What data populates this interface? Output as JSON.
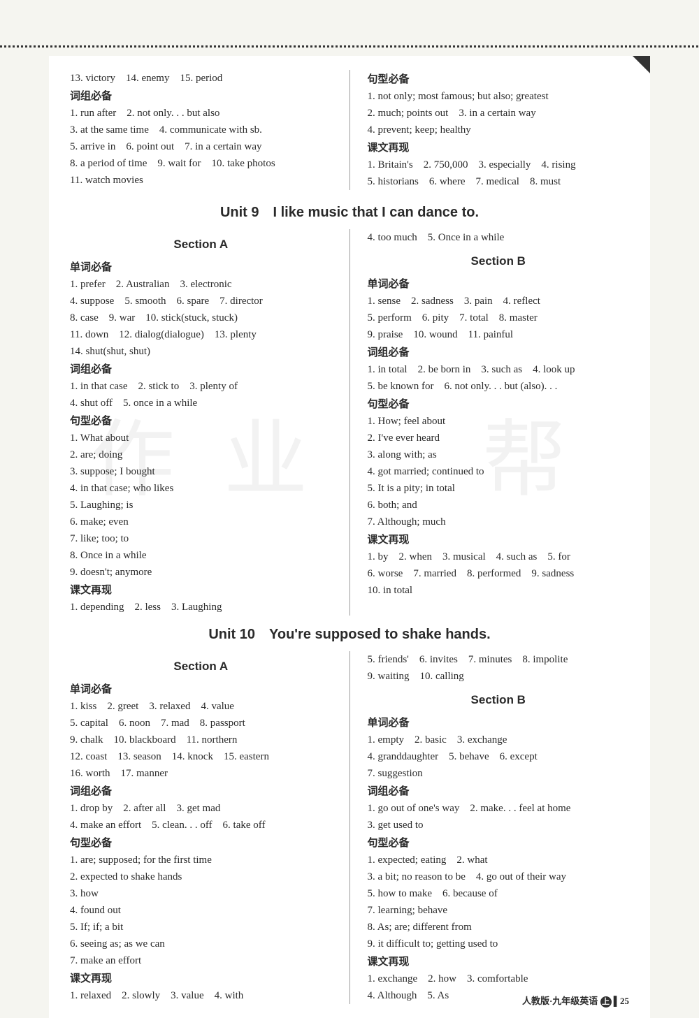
{
  "top": {
    "left": {
      "line1": "13. victory　14. enemy　15. period",
      "heading1": "词组必备",
      "line2": "1. run after　2. not only. . . but also",
      "line3": "3. at the same time　4. communicate with sb.",
      "line4": "5. arrive in　6. point out　7. in a certain way",
      "line5": "8. a period of time　9. wait for　10. take photos",
      "line6": "11. watch movies"
    },
    "right": {
      "heading1": "句型必备",
      "line1": "1. not only; most famous; but also; greatest",
      "line2": "2. much; points out　3. in a certain way",
      "line3": "4. prevent; keep; healthy",
      "heading2": "课文再现",
      "line4": "1. Britain's　2. 750,000　3. especially　4. rising",
      "line5": "5. historians　6. where　7. medical　8. must"
    }
  },
  "unit9": {
    "title": "Unit 9　I like music that I can dance to.",
    "sectionA": {
      "title": "Section A",
      "h1": "单词必备",
      "l1": "1. prefer　2. Australian　3. electronic",
      "l2": "4. suppose　5. smooth　6. spare　7. director",
      "l3": "8. case　9. war　10. stick(stuck, stuck)",
      "l4": "11. down　12. dialog(dialogue)　13. plenty",
      "l5": "14. shut(shut, shut)",
      "h2": "词组必备",
      "l6": "1. in that case　2. stick to　3. plenty of",
      "l7": "4. shut off　5. once in a while",
      "h3": "句型必备",
      "l8": "1. What about",
      "l9": "2. are; doing",
      "l10": "3. suppose; I bought",
      "l11": "4. in that case; who likes",
      "l12": "5. Laughing; is",
      "l13": "6. make; even",
      "l14": "7. like; too; to",
      "l15": "8. Once in a while",
      "l16": "9. doesn't; anymore",
      "h4": "课文再现",
      "l17": "1. depending　2. less　3. Laughing"
    },
    "rightTop": "4. too much　5. Once in a while",
    "sectionB": {
      "title": "Section B",
      "h1": "单词必备",
      "l1": "1. sense　2. sadness　3. pain　4. reflect",
      "l2": "5. perform　6. pity　7. total　8. master",
      "l3": "9. praise　10. wound　11. painful",
      "h2": "词组必备",
      "l4": "1. in total　2. be born in　3. such as　4. look up",
      "l5": "5. be known for　6. not only. . . but (also). . .",
      "h3": "句型必备",
      "l6": "1. How; feel about",
      "l7": "2. I've ever heard",
      "l8": "3. along with; as",
      "l9": "4. got married; continued to",
      "l10": "5. It is a pity; in total",
      "l11": "6. both; and",
      "l12": "7. Although; much",
      "h4": "课文再现",
      "l13": "1. by　2. when　3. musical　4. such as　5. for",
      "l14": "6. worse　7. married　8. performed　9. sadness",
      "l15": "10. in total"
    }
  },
  "unit10": {
    "title": "Unit 10　You're supposed to shake hands.",
    "sectionA": {
      "title": "Section A",
      "h1": "单词必备",
      "l1": "1. kiss　2. greet　3. relaxed　4. value",
      "l2": "5. capital　6. noon　7. mad　8. passport",
      "l3": "9. chalk　10. blackboard　11. northern",
      "l4": "12. coast　13. season　14. knock　15. eastern",
      "l5": "16. worth　17. manner",
      "h2": "词组必备",
      "l6": "1. drop by　2. after all　3. get mad",
      "l7": "4. make an effort　5. clean. . . off　6. take off",
      "h3": "句型必备",
      "l8": "1. are; supposed; for the first time",
      "l9": "2. expected to shake hands",
      "l10": "3. how",
      "l11": "4. found out",
      "l12": "5. If; if; a bit",
      "l13": "6. seeing as; as we can",
      "l14": "7. make an effort",
      "h4": "课文再现",
      "l15": "1. relaxed　2. slowly　3. value　4. with"
    },
    "rightTop": "5. friends'　6. invites　7. minutes　8. impolite",
    "rightTop2": "9. waiting　10. calling",
    "sectionB": {
      "title": "Section B",
      "h1": "单词必备",
      "l1": "1. empty　2. basic　3. exchange",
      "l2": "4. granddaughter　5. behave　6. except",
      "l3": "7. suggestion",
      "h2": "词组必备",
      "l4": "1. go out of one's way　2. make. . . feel at home",
      "l5": "3. get used to",
      "h3": "句型必备",
      "l6": "1. expected; eating　2. what",
      "l7": "3. a bit; no reason to be　4. go out of their way",
      "l8": "5. how to make　6. because of",
      "l9": "7. learning; behave",
      "l10": "8. As; are; different from",
      "l11": "9. it difficult to; getting used to",
      "h4": "课文再现",
      "l12": "1. exchange　2. how　3. comfortable",
      "l13": "4. Although　5. As"
    }
  },
  "footer": {
    "text": "人教版·九年级英语",
    "page": "25"
  },
  "colors": {
    "bg": "#f5f5f0",
    "page": "#ffffff",
    "text": "#2a2a2a",
    "watermark": "rgba(0,0,0,0.05)"
  }
}
